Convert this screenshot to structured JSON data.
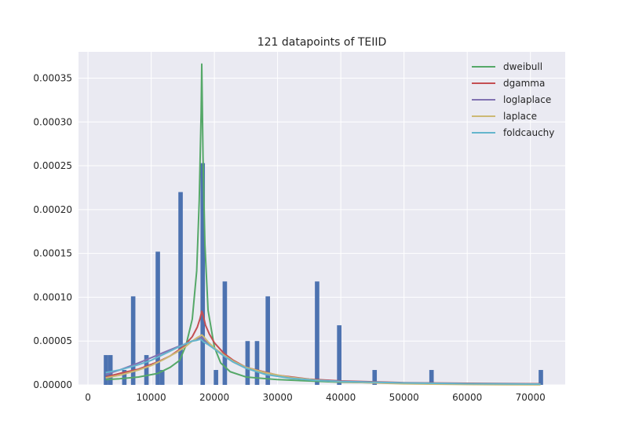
{
  "chart_data": {
    "type": "bar",
    "title": "121 datapoints of TEIID",
    "xlabel": "",
    "ylabel": "",
    "xlim": [
      -1500,
      75500
    ],
    "ylim": [
      0,
      0.00038
    ],
    "grid": true,
    "background": "#eaeaf2",
    "legend_position": "top-right",
    "x_ticks": [
      0,
      10000,
      20000,
      30000,
      40000,
      50000,
      60000,
      70000
    ],
    "x_tick_labels": [
      "0",
      "10000",
      "20000",
      "30000",
      "40000",
      "50000",
      "60000",
      "70000"
    ],
    "y_ticks": [
      0,
      5e-05,
      0.0001,
      0.00015,
      0.0002,
      0.00025,
      0.0003,
      0.00035
    ],
    "y_tick_labels": [
      "0.00000",
      "0.00005",
      "0.00010",
      "0.00015",
      "0.00020",
      "0.00025",
      "0.00030",
      "0.00035"
    ],
    "histogram": {
      "color": "#4c72b0",
      "bin_width": 700,
      "bin_starts": [
        2500,
        3200,
        5400,
        6800,
        8900,
        10700,
        11400,
        14300,
        17800,
        19900,
        21300,
        24900,
        26400,
        28100,
        35900,
        39400,
        45000,
        54000,
        71300
      ],
      "values": [
        3.4e-05,
        3.4e-05,
        1.7e-05,
        0.000101,
        3.4e-05,
        0.000152,
        1.7e-05,
        0.00022,
        0.000253,
        1.7e-05,
        0.000118,
        5e-05,
        5e-05,
        0.000101,
        0.000118,
        6.8e-05,
        1.7e-05,
        1.7e-05,
        1.7e-05
      ]
    },
    "series": [
      {
        "name": "dweibull",
        "color": "#55a868",
        "x": [
          2800,
          5000,
          8000,
          11000,
          13000,
          14500,
          15500,
          16500,
          17200,
          17600,
          17900,
          18000,
          18200,
          18500,
          19000,
          20000,
          21000,
          22500,
          25000,
          30000,
          40000,
          50000,
          60000,
          71600
        ],
        "y": [
          6e-06,
          7e-06,
          9e-06,
          1.3e-05,
          2e-05,
          2.8e-05,
          4.5e-05,
          7.5e-05,
          0.00013,
          0.00021,
          0.00031,
          0.000366,
          0.00026,
          0.00016,
          8.5e-05,
          4.3e-05,
          2.5e-05,
          1.5e-05,
          9e-06,
          6e-06,
          3e-06,
          2e-06,
          1.5e-06,
          1e-06
        ]
      },
      {
        "name": "dgamma",
        "color": "#c44e52",
        "x": [
          2800,
          5000,
          8000,
          11000,
          13000,
          15000,
          16500,
          17300,
          17700,
          17950,
          18000,
          18200,
          18600,
          19200,
          20000,
          21500,
          23000,
          25000,
          30000,
          35000,
          40000,
          50000,
          60000,
          71600
        ],
        "y": [
          9e-06,
          1.3e-05,
          1.8e-05,
          2.6e-05,
          3.3e-05,
          4.3e-05,
          5.5e-05,
          6.6e-05,
          7.5e-05,
          8.2e-05,
          8.4e-05,
          8e-05,
          6.8e-05,
          5.8e-05,
          4.8e-05,
          3.6e-05,
          2.8e-05,
          2e-05,
          1.1e-05,
          6.5e-06,
          4.5e-06,
          2.5e-06,
          1.8e-06,
          1.2e-06
        ]
      },
      {
        "name": "loglaplace",
        "color": "#8172b2",
        "x": [
          2800,
          5000,
          8000,
          10000,
          12000,
          14000,
          15500,
          16500,
          17300,
          17800,
          18000,
          18300,
          19000,
          20000,
          21500,
          23000,
          25000,
          28000,
          32000,
          36000,
          40000,
          50000,
          60000,
          71600
        ],
        "y": [
          1.2e-05,
          1.7e-05,
          2.5e-05,
          3.1e-05,
          3.7e-05,
          4.3e-05,
          4.7e-05,
          5e-05,
          5.2e-05,
          5.4e-05,
          5.4e-05,
          5.2e-05,
          4.7e-05,
          4.1e-05,
          3.3e-05,
          2.6e-05,
          1.9e-05,
          1.3e-05,
          8.5e-06,
          5.5e-06,
          4e-06,
          2.2e-06,
          1.3e-06,
          8e-07
        ]
      },
      {
        "name": "laplace",
        "color": "#ccb974",
        "x": [
          2800,
          5000,
          8000,
          10000,
          12000,
          14000,
          15500,
          16500,
          17300,
          17800,
          18000,
          18300,
          19000,
          20000,
          21500,
          23000,
          25000,
          28000,
          32000,
          36000,
          40000,
          50000,
          60000,
          71600
        ],
        "y": [
          8e-06,
          1.1e-05,
          1.7e-05,
          2.2e-05,
          2.9e-05,
          3.7e-05,
          4.4e-05,
          5e-05,
          5.4e-05,
          5.6e-05,
          5.7e-05,
          5.5e-05,
          4.9e-05,
          4.2e-05,
          3.4e-05,
          2.7e-05,
          2e-05,
          1.4e-05,
          8.5e-06,
          5.5e-06,
          3.5e-06,
          1.2e-06,
          4e-07,
          1e-07
        ]
      },
      {
        "name": "foldcauchy",
        "color": "#64b5cd",
        "x": [
          2800,
          5000,
          8000,
          10000,
          12000,
          14000,
          15500,
          16500,
          17300,
          17800,
          18000,
          18300,
          19000,
          20000,
          21500,
          23000,
          25000,
          28000,
          32000,
          36000,
          40000,
          50000,
          60000,
          71600
        ],
        "y": [
          1.4e-05,
          1.7e-05,
          2.3e-05,
          2.8e-05,
          3.5e-05,
          4.2e-05,
          4.7e-05,
          5e-05,
          5.1e-05,
          5.2e-05,
          5.1e-05,
          4.9e-05,
          4.6e-05,
          4.1e-05,
          3.3e-05,
          2.6e-05,
          1.9e-05,
          1.2e-05,
          7.5e-06,
          5.2e-06,
          3.8e-06,
          2.2e-06,
          1.4e-06,
          9e-07
        ]
      }
    ]
  }
}
